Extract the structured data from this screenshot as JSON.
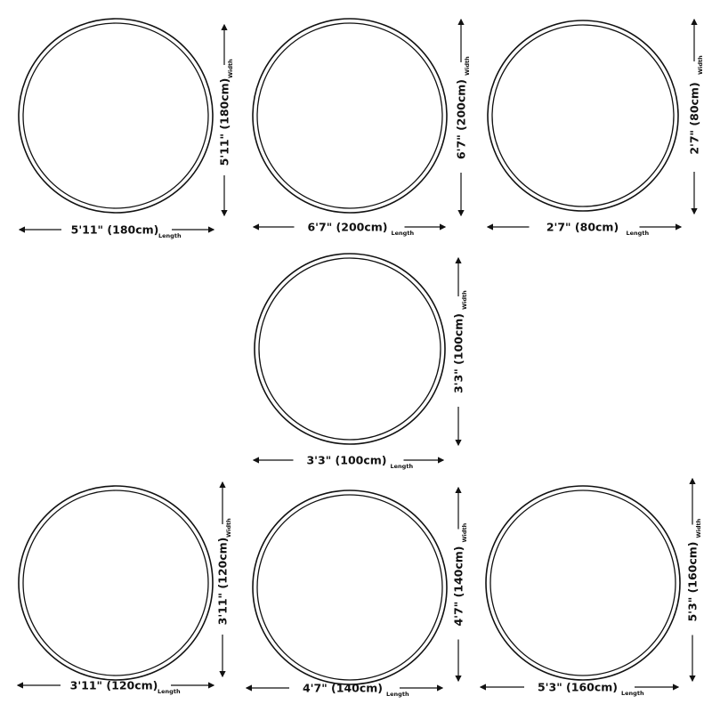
{
  "rugs": [
    {
      "length_label": "5'11\" (180cm)",
      "width_label": "5'11\" (180cm)",
      "length_suffix": "Length",
      "width_suffix": "Width"
    },
    {
      "length_label": "6'7\" (200cm)",
      "width_label": "6'7\" (200cm)",
      "length_suffix": "Length",
      "width_suffix": "Width"
    },
    {
      "length_label": "2'7\" (80cm)",
      "width_label": "2'7\" (80cm)",
      "length_suffix": "Length",
      "width_suffix": "Width"
    },
    {
      "length_label": "3'3\" (100cm)",
      "width_label": "3'3\" (100cm)",
      "length_suffix": "Length",
      "width_suffix": "Width"
    },
    {
      "length_label": "3'11\" (120cm)",
      "width_label": "3'11\" (120cm)",
      "length_suffix": "Length",
      "width_suffix": "Width"
    },
    {
      "length_label": "4'7\" (140cm)",
      "width_label": "4'7\" (140cm)",
      "length_suffix": "Length",
      "width_suffix": "Width"
    },
    {
      "length_label": "5'3\" (160cm)",
      "width_label": "5'3\" (160cm)",
      "length_suffix": "Length",
      "width_suffix": "Width"
    }
  ],
  "colors": {
    "line": "#111111",
    "background": "#ffffff"
  }
}
